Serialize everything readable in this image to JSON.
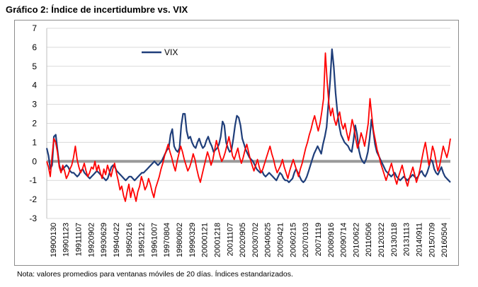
{
  "title": "Gráfico 2: Índice de incertidumbre vs. VIX",
  "note": "Nota: valores promedios para ventanas móviles de 20 días. Índices estandarizados.",
  "colors": {
    "vix": "#1f3e7a",
    "uncertainty": "#ff0000",
    "zero": "#9a9a9a",
    "grid": "#d9d9d9"
  },
  "chart_data": {
    "type": "line",
    "title": "Gráfico 2: Índice de incertidumbre vs. VIX",
    "xlabel": "",
    "ylabel": "",
    "ylim": [
      -3,
      7
    ],
    "yticks": [
      -3,
      -2,
      -1,
      0,
      1,
      2,
      3,
      4,
      5,
      6,
      7
    ],
    "grid": true,
    "legend_position": "top-left",
    "x_tick_labels": [
      "19900130",
      "19901123",
      "19911107",
      "19920902",
      "19930629",
      "19940422",
      "19950216",
      "19951212",
      "19961007",
      "19970804",
      "19980602",
      "19990329",
      "20000121",
      "20001218",
      "20011107",
      "20020905",
      "20030702",
      "20040625",
      "20050421",
      "20060215",
      "20070103",
      "20071119",
      "20080916",
      "20090714",
      "20100622",
      "20110506",
      "20120322",
      "20130118",
      "20131113",
      "20140911",
      "20150709",
      "20160504"
    ],
    "series": [
      {
        "name": "VIX",
        "color": "#1f3e7a",
        "values": [
          0.7,
          0.3,
          -0.4,
          -0.2,
          1.3,
          1.4,
          0.6,
          -0.2,
          -0.5,
          -0.4,
          -0.3,
          -0.2,
          -0.3,
          -0.5,
          -0.6,
          -0.6,
          -0.7,
          -0.8,
          -0.7,
          -0.5,
          -0.4,
          -0.6,
          -0.7,
          -0.8,
          -0.9,
          -0.8,
          -0.7,
          -0.6,
          -0.5,
          -0.6,
          -0.7,
          -0.8,
          -0.9,
          -1.0,
          -0.9,
          -0.6,
          -0.3,
          -0.2,
          -0.3,
          -0.5,
          -0.6,
          -0.7,
          -0.8,
          -0.9,
          -1.0,
          -0.9,
          -0.8,
          -0.8,
          -0.9,
          -1.0,
          -0.9,
          -0.8,
          -0.7,
          -0.6,
          -0.6,
          -0.5,
          -0.4,
          -0.3,
          -0.2,
          -0.1,
          0.0,
          -0.1,
          -0.2,
          -0.1,
          0.0,
          0.2,
          0.4,
          0.6,
          0.7,
          1.4,
          1.7,
          0.8,
          0.6,
          0.5,
          0.7,
          1.9,
          2.5,
          2.5,
          1.6,
          1.2,
          1.3,
          1.0,
          0.8,
          0.7,
          1.0,
          1.2,
          0.9,
          0.7,
          0.8,
          1.1,
          1.3,
          1.0,
          0.8,
          0.5,
          0.6,
          0.7,
          0.9,
          1.3,
          2.1,
          1.9,
          1.0,
          0.7,
          0.5,
          0.6,
          1.2,
          1.9,
          2.4,
          2.3,
          1.9,
          1.2,
          0.9,
          0.6,
          0.4,
          0.2,
          0.1,
          0.0,
          -0.2,
          -0.4,
          -0.5,
          -0.6,
          -0.5,
          -0.7,
          -0.8,
          -0.7,
          -0.6,
          -0.7,
          -0.8,
          -0.9,
          -1.0,
          -0.8,
          -0.6,
          -0.7,
          -0.9,
          -1.0,
          -1.0,
          -1.1,
          -1.0,
          -0.9,
          -0.6,
          -0.4,
          -0.6,
          -0.8,
          -1.0,
          -1.1,
          -1.0,
          -0.8,
          -0.5,
          -0.2,
          0.1,
          0.4,
          0.6,
          0.8,
          0.6,
          0.4,
          0.9,
          1.3,
          1.8,
          3.0,
          4.3,
          5.9,
          5.0,
          3.6,
          2.6,
          1.9,
          1.4,
          1.2,
          1.0,
          0.9,
          0.8,
          0.6,
          0.5,
          1.1,
          1.9,
          1.4,
          0.6,
          0.2,
          0.0,
          -0.1,
          0.1,
          0.5,
          1.2,
          2.2,
          1.6,
          0.9,
          0.5,
          0.3,
          0.1,
          -0.1,
          -0.3,
          -0.5,
          -0.6,
          -0.7,
          -0.8,
          -0.7,
          -0.6,
          -0.8,
          -0.9,
          -1.0,
          -0.9,
          -0.8,
          -0.9,
          -1.0,
          -0.9,
          -0.8,
          -0.7,
          -0.8,
          -0.9,
          -0.8,
          -0.6,
          -0.5,
          -0.7,
          -0.8,
          -0.6,
          -0.3,
          0.1,
          0.0,
          -0.4,
          -0.6,
          -0.7,
          -0.5,
          -0.3,
          -0.6,
          -0.8,
          -0.9,
          -1.0,
          -1.1
        ]
      },
      {
        "name": "",
        "color": "#ff0000",
        "values": [
          0.0,
          -0.3,
          -0.8,
          0.3,
          1.2,
          1.0,
          0.5,
          -0.3,
          -0.6,
          -0.2,
          -0.5,
          -0.9,
          -0.7,
          -0.4,
          -0.2,
          0.2,
          0.8,
          0.1,
          -0.3,
          -0.6,
          -0.4,
          -0.1,
          -0.5,
          -0.8,
          -0.6,
          -0.3,
          -0.4,
          0.0,
          -0.5,
          -0.2,
          -0.6,
          -0.9,
          -0.4,
          -0.7,
          -0.2,
          -0.5,
          -0.8,
          -0.4,
          -0.1,
          -0.6,
          -1.0,
          -1.5,
          -1.3,
          -1.8,
          -2.1,
          -1.6,
          -1.2,
          -1.9,
          -1.4,
          -1.7,
          -2.1,
          -1.6,
          -1.3,
          -0.8,
          -1.1,
          -1.5,
          -1.3,
          -0.9,
          -1.2,
          -1.6,
          -1.9,
          -1.4,
          -1.1,
          -0.8,
          -0.4,
          -0.1,
          0.3,
          0.6,
          0.9,
          0.5,
          0.2,
          -0.2,
          -0.5,
          0.0,
          0.4,
          0.8,
          0.5,
          0.1,
          -0.2,
          -0.5,
          -0.3,
          0.0,
          0.4,
          0.1,
          -0.4,
          -0.8,
          -1.1,
          -0.7,
          -0.3,
          0.1,
          0.5,
          0.2,
          -0.2,
          0.1,
          0.6,
          1.1,
          0.7,
          0.3,
          0.0,
          0.2,
          0.5,
          0.9,
          1.3,
          0.8,
          0.3,
          0.1,
          0.4,
          0.7,
          0.2,
          -0.1,
          0.2,
          0.6,
          0.9,
          0.5,
          0.1,
          -0.2,
          -0.5,
          -0.2,
          0.1,
          -0.3,
          -0.6,
          -0.4,
          -0.1,
          0.2,
          0.5,
          0.8,
          0.4,
          0.1,
          -0.3,
          -0.6,
          -0.4,
          -0.2,
          0.1,
          -0.3,
          -0.6,
          -0.9,
          -0.5,
          -0.2,
          0.1,
          -0.2,
          -0.5,
          -0.8,
          -0.4,
          -0.1,
          0.3,
          0.7,
          1.0,
          1.4,
          1.7,
          2.1,
          2.4,
          2.0,
          1.6,
          2.0,
          2.6,
          3.3,
          5.7,
          4.2,
          3.0,
          2.4,
          2.8,
          2.2,
          1.9,
          2.3,
          2.6,
          2.0,
          1.7,
          2.0,
          1.5,
          1.1,
          1.6,
          2.2,
          1.8,
          1.2,
          0.7,
          1.0,
          1.5,
          1.2,
          0.8,
          1.4,
          2.0,
          3.3,
          2.4,
          1.6,
          1.1,
          0.6,
          0.3,
          -0.1,
          -0.4,
          -0.7,
          -1.0,
          -0.7,
          -0.4,
          -0.1,
          -0.5,
          -0.9,
          -1.2,
          -0.8,
          -0.5,
          -0.2,
          -0.6,
          -1.0,
          -1.3,
          -0.9,
          -0.6,
          -0.3,
          -0.7,
          -1.1,
          -0.8,
          -0.4,
          0.1,
          0.6,
          1.0,
          0.4,
          -0.2,
          0.2,
          0.8,
          0.5,
          0.0,
          -0.5,
          -0.2,
          0.3,
          0.8,
          0.5,
          0.2,
          0.6,
          1.2
        ]
      }
    ],
    "reference_line": {
      "y": 0
    }
  }
}
